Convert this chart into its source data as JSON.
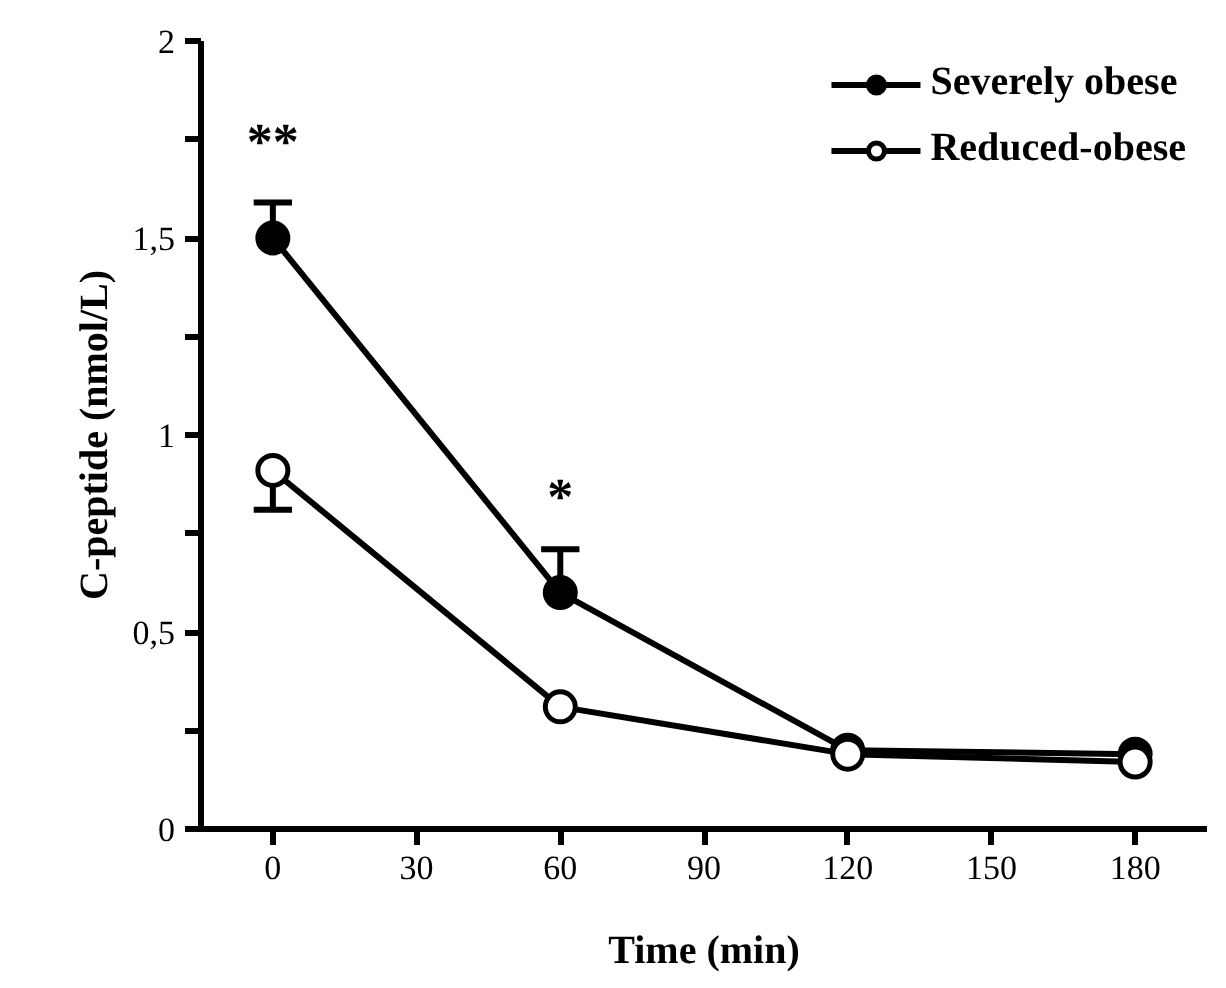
{
  "chart_data": {
    "type": "line",
    "xlabel": "Time (min)",
    "ylabel": "C-peptide (nmol/L)",
    "x": [
      0,
      60,
      120,
      180
    ],
    "series": [
      {
        "name": "Severely obese",
        "color": "#000000",
        "values": [
          1.5,
          0.6,
          0.2,
          0.19
        ],
        "errors": [
          [
            1.5,
            1.59
          ],
          [
            0.6,
            0.71
          ],
          null,
          null
        ]
      },
      {
        "name": "Reduced-obese",
        "color": "#000000",
        "values": [
          0.91,
          0.31,
          0.19,
          0.17
        ],
        "errors": [
          [
            0.81,
            0.91
          ],
          null,
          null,
          null
        ]
      }
    ],
    "xlim": [
      -15,
      195
    ],
    "xticks": [
      0,
      30,
      60,
      90,
      120,
      150,
      180
    ],
    "ylim": [
      0,
      2
    ],
    "yticks": [
      {
        "value": 0,
        "label": "0"
      },
      {
        "value": 0.25,
        "label": null
      },
      {
        "value": 0.5,
        "label": "0,5"
      },
      {
        "value": 0.75,
        "label": null
      },
      {
        "value": 1,
        "label": "1"
      },
      {
        "value": 1.25,
        "label": null
      },
      {
        "value": 1.5,
        "label": "1,5"
      },
      {
        "value": 1.75,
        "label": null
      },
      {
        "value": 2,
        "label": "2"
      }
    ],
    "annotations": [
      "**",
      "*"
    ],
    "marker": "circle",
    "line_style": "solid",
    "legend": "top right",
    "grid": false
  }
}
